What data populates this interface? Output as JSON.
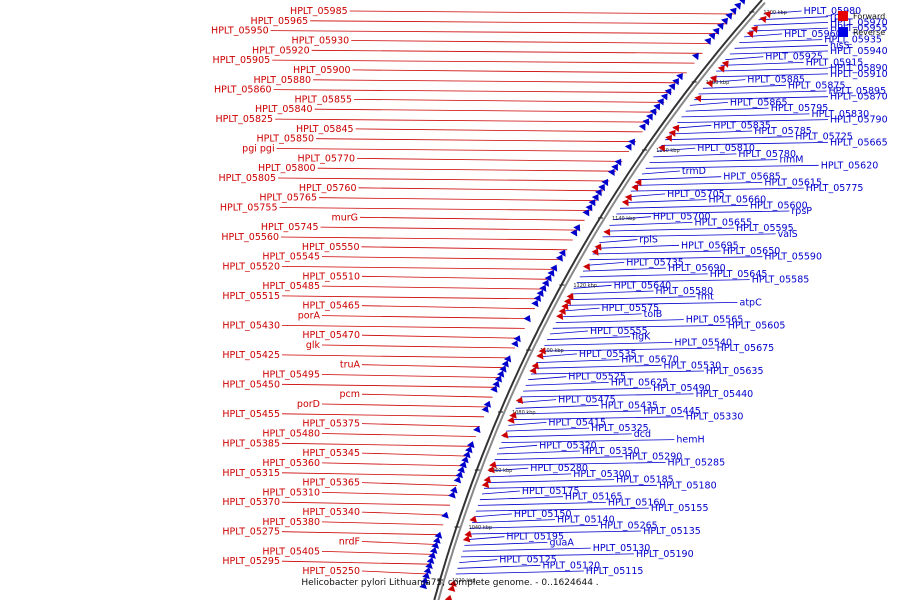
{
  "legend": {
    "items": [
      {
        "label": "Forward",
        "color": "#e60000"
      },
      {
        "label": "Reverse",
        "color": "#0000e6"
      }
    ]
  },
  "caption": "Helicobacter pylori Lithuania75, complete genome. - 0..1624644 .",
  "colors": {
    "forward": "#cc0000",
    "reverse": "#0000cc",
    "backbone": "#888888"
  },
  "scale_ticks": [
    "1200 kbp",
    "1180 kbp",
    "1160 kbp",
    "1140 kbp",
    "1120 kbp",
    "1100 kbp",
    "1080 kbp",
    "1060 kbp",
    "1040 kbp",
    "1020 kbp"
  ],
  "forward_labels": [
    "HPLT_05985",
    "HPLT_05965",
    "HPLT_05950",
    "HPLT_05930",
    "HPLT_05920",
    "HPLT_05905",
    "HPLT_05900",
    "HPLT_05880",
    "HPLT_05860",
    "HPLT_05855",
    "HPLT_05840",
    "HPLT_05825",
    "HPLT_05845",
    "HPLT_05850",
    "pgi pgi",
    "HPLT_05770",
    "HPLT_05800",
    "HPLT_05805",
    "HPLT_05760",
    "HPLT_05765",
    "HPLT_05755",
    "murG",
    "HPLT_05745",
    "HPLT_05560",
    "HPLT_05550",
    "HPLT_05545",
    "HPLT_05520",
    "HPLT_05510",
    "HPLT_05485",
    "HPLT_05515",
    "HPLT_05465",
    "porA",
    "HPLT_05430",
    "HPLT_05470",
    "glk",
    "HPLT_05425",
    "truA",
    "HPLT_05495",
    "HPLT_05450",
    "pcm",
    "porD",
    "HPLT_05455",
    "HPLT_05375",
    "HPLT_05480",
    "HPLT_05385",
    "HPLT_05345",
    "HPLT_05360",
    "HPLT_05315",
    "HPLT_05365",
    "HPLT_05310",
    "HPLT_05370",
    "HPLT_05340",
    "HPLT_05380",
    "HPLT_05275",
    "nrdF",
    "HPLT_05405",
    "HPLT_05295",
    "HPLT_05250"
  ],
  "reverse_labels": [
    "HPLT_05980",
    "rpsL",
    "HPLT_05970",
    "HPLT_05955",
    "HPLT_05960",
    "HPLT_05935",
    "hisS",
    "HPLT_05940",
    "HPLT_05925",
    "HPLT_05915",
    "HPLT_05890",
    "HPLT_05910",
    "HPLT_05885",
    "HPLT_05875",
    "HPLT_05895",
    "HPLT_05870",
    "HPLT_05865",
    "HPLT_05795",
    "HPLT_05830",
    "HPLT_05790",
    "HPLT_05835",
    "HPLT_05785",
    "HPLT_05725",
    "HPLT_05665",
    "HPLT_05810",
    "HPLT_05780",
    "rimM",
    "HPLT_05620",
    "trmD",
    "HPLT_05685",
    "HPLT_05615",
    "HPLT_05775",
    "HPLT_05705",
    "HPLT_05660",
    "HPLT_05600",
    "rpsP",
    "HPLT_05700",
    "HPLT_05655",
    "HPLT_05595",
    "valS",
    "rplS",
    "HPLT_05695",
    "HPLT_05650",
    "HPLT_05590",
    "HPLT_05735",
    "HPLT_05690",
    "HPLT_05645",
    "HPLT_05585",
    "HPLT_05640",
    "HPLT_05580",
    "fmt",
    "atpC",
    "HPLT_05575",
    "tolB",
    "HPLT_05565",
    "HPLT_05605",
    "HPLT_05555",
    "flgK",
    "HPLT_05540",
    "HPLT_05675",
    "HPLT_05535",
    "HPLT_05670",
    "HPLT_05530",
    "HPLT_05635",
    "HPLT_05525",
    "HPLT_05625",
    "HPLT_05490",
    "HPLT_05440",
    "HPLT_05475",
    "HPLT_05435",
    "HPLT_05445",
    "HPLT_05330",
    "HPLT_05415",
    "HPLT_05325",
    "dcd",
    "hemH",
    "HPLT_05320",
    "HPLT_05350",
    "HPLT_05290",
    "HPLT_05285",
    "HPLT_05280",
    "HPLT_05300",
    "HPLT_05185",
    "HPLT_05180",
    "HPLT_05175",
    "HPLT_05165",
    "HPLT_05160",
    "HPLT_05155",
    "HPLT_05150",
    "HPLT_05140",
    "HPLT_05265",
    "HPLT_05135",
    "HPLT_05195",
    "guaA",
    "HPLT_05130",
    "HPLT_05190",
    "HPLT_05125",
    "HPLT_05120",
    "HPLT_05115"
  ]
}
